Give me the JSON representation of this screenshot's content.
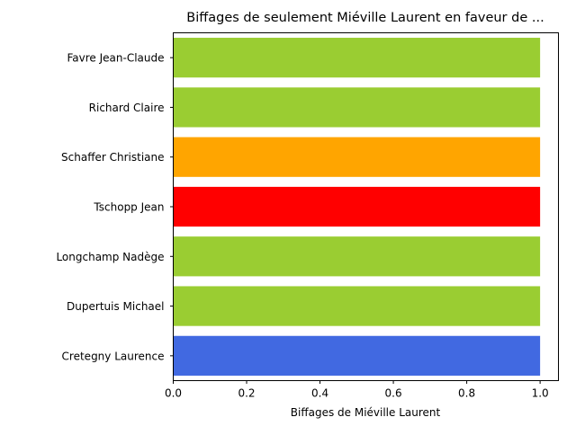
{
  "chart_data": {
    "type": "bar",
    "orientation": "horizontal",
    "title": "Biffages de seulement Miéville Laurent en faveur de ...",
    "xlabel": "Biffages de Miéville Laurent",
    "ylabel": "",
    "xlim": [
      0,
      1.05
    ],
    "x_ticks": [
      "0.0",
      "0.2",
      "0.4",
      "0.6",
      "0.8",
      "1.0"
    ],
    "x_tick_values": [
      0,
      0.2,
      0.4,
      0.6,
      0.8,
      1.0
    ],
    "grid": false,
    "categories": [
      "Cretegny Laurence",
      "Dupertuis Michael",
      "Longchamp Nadège",
      "Tschopp Jean",
      "Schaffer Christiane",
      "Richard Claire",
      "Favre Jean-Claude"
    ],
    "values": [
      1,
      1,
      1,
      1,
      1,
      1,
      1
    ],
    "colors": [
      "#4169e1",
      "#9acd32",
      "#9acd32",
      "#ff0000",
      "#ffa500",
      "#9acd32",
      "#9acd32"
    ]
  }
}
